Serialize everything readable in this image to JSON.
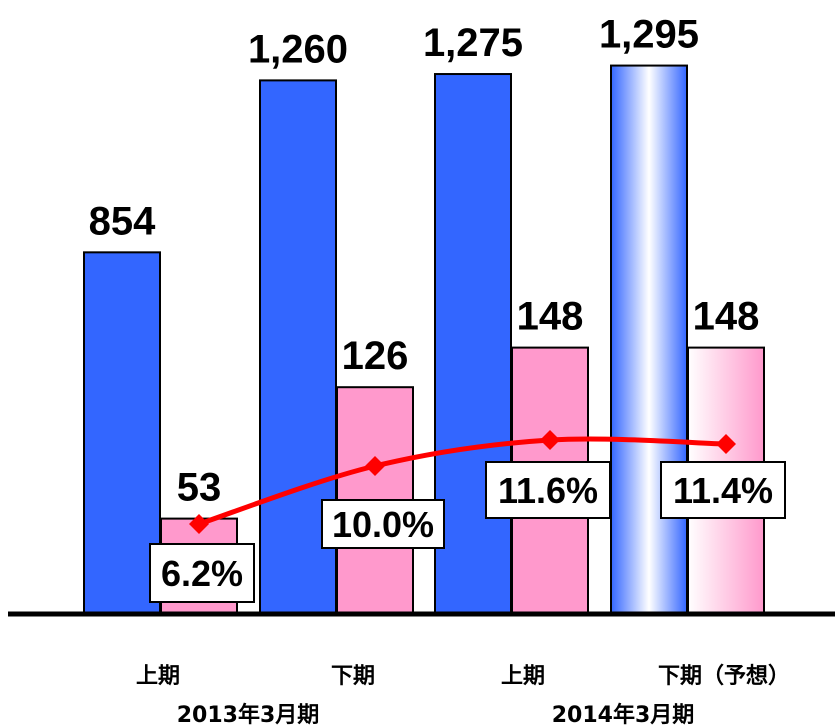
{
  "chart_data": {
    "type": "bar",
    "categories": [
      "上期",
      "下期",
      "上期",
      "下期（予想）"
    ],
    "groups": [
      "2013年3月期",
      "2014年3月期"
    ],
    "series": [
      {
        "values": [
          854,
          1260,
          1275,
          1295
        ],
        "labels": [
          "854",
          "1,260",
          "1,275",
          "1,295"
        ],
        "color": "#3366ff"
      },
      {
        "values": [
          53,
          126,
          148,
          148
        ],
        "labels": [
          "53",
          "126",
          "148",
          "148"
        ],
        "color": "#ff99cc"
      }
    ],
    "line": {
      "values": [
        6.2,
        10.0,
        11.6,
        11.4
      ],
      "labels": [
        "6.2%",
        "10.0%",
        "11.6%",
        "11.4%"
      ],
      "color": "#ff0000"
    },
    "forecast_index": 3,
    "ylim": [
      0,
      1400
    ]
  }
}
